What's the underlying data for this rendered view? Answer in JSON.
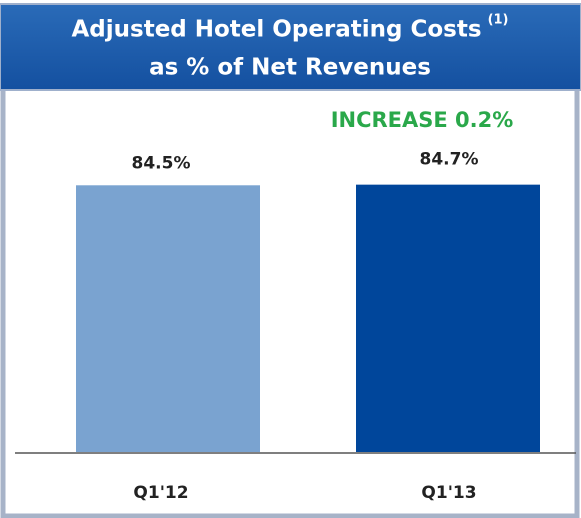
{
  "chart_data": {
    "type": "bar",
    "title": "Adjusted Hotel Operating Costs",
    "title_note": "(1)",
    "subtitle": "as % of Net Revenues",
    "annotation": "INCREASE 0.2%",
    "categories": [
      "Q1'12",
      "Q1'13"
    ],
    "values": [
      84.5,
      84.7
    ],
    "value_labels": [
      "84.5%",
      "84.7%"
    ],
    "colors": [
      "#7aa3d0",
      "#00469b"
    ],
    "ylim": [
      0,
      100
    ]
  }
}
